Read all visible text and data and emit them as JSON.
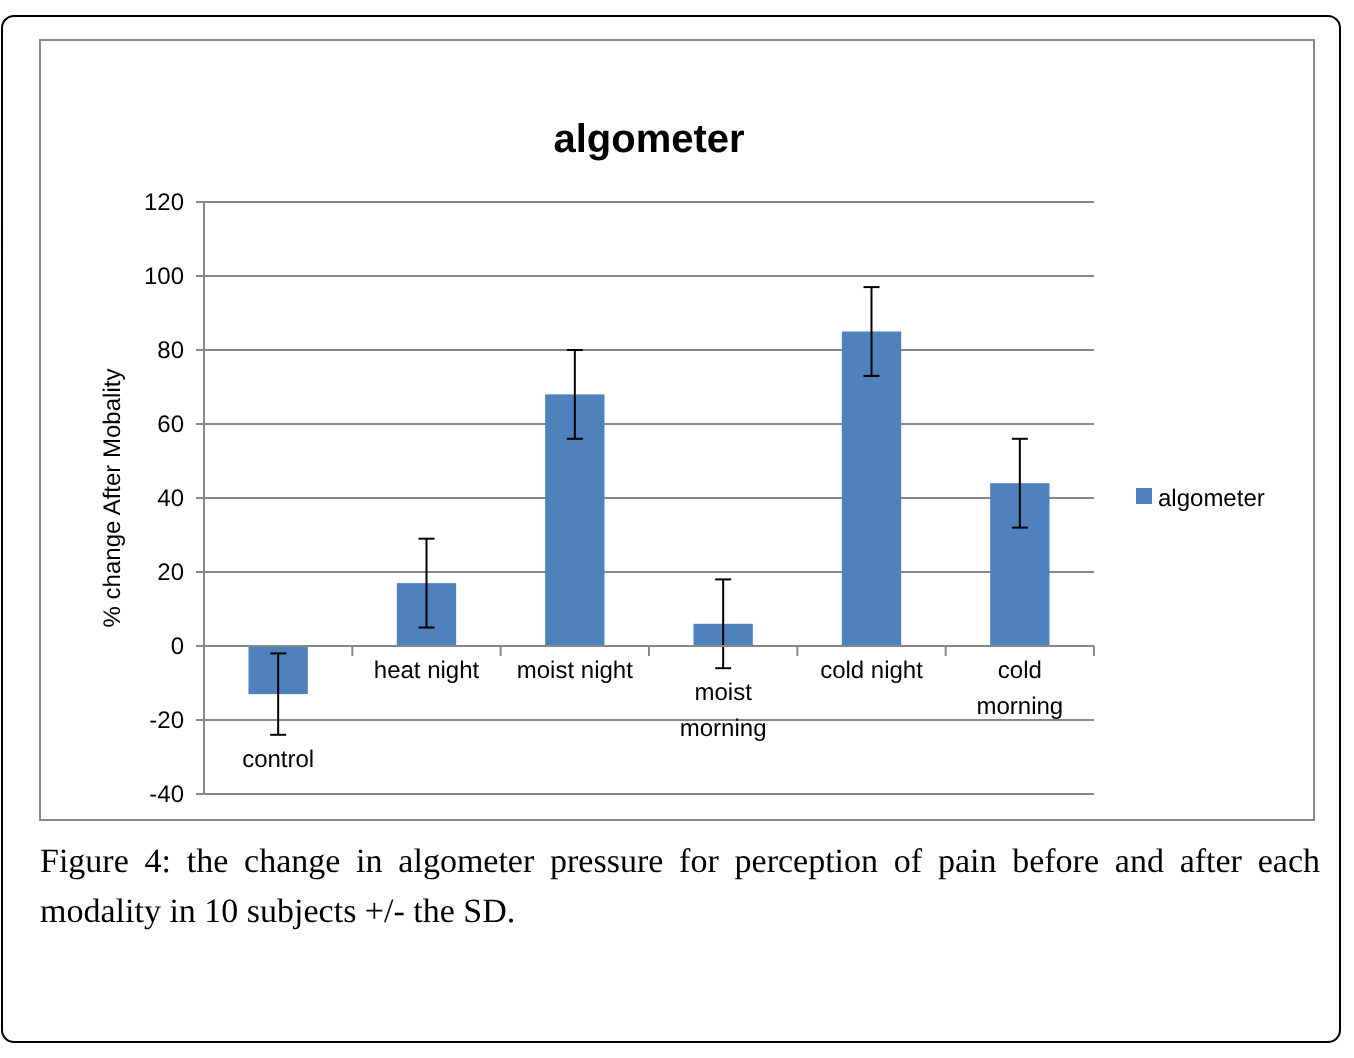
{
  "chart_data": {
    "type": "bar",
    "title": "algometer",
    "ylabel": "% change After Mobality",
    "categories": [
      "control",
      "heat night",
      "moist night",
      "moist\nmorning",
      "cold night",
      "cold\nmorning"
    ],
    "series": [
      {
        "name": "algometer",
        "color": "#4f81bd",
        "values": [
          -13,
          17,
          68,
          6,
          85,
          44
        ],
        "errors": [
          11,
          12,
          12,
          12,
          12,
          12
        ]
      }
    ],
    "ylim": [
      -40,
      120
    ],
    "yticks": [
      -40,
      -20,
      0,
      20,
      40,
      60,
      80,
      100,
      120
    ],
    "grid": "y",
    "legend": "right",
    "annotations": [
      "Figure 4: the change in algometer pressure for perception of pain before and after each modality in 10 subjects +/- the SD."
    ]
  }
}
